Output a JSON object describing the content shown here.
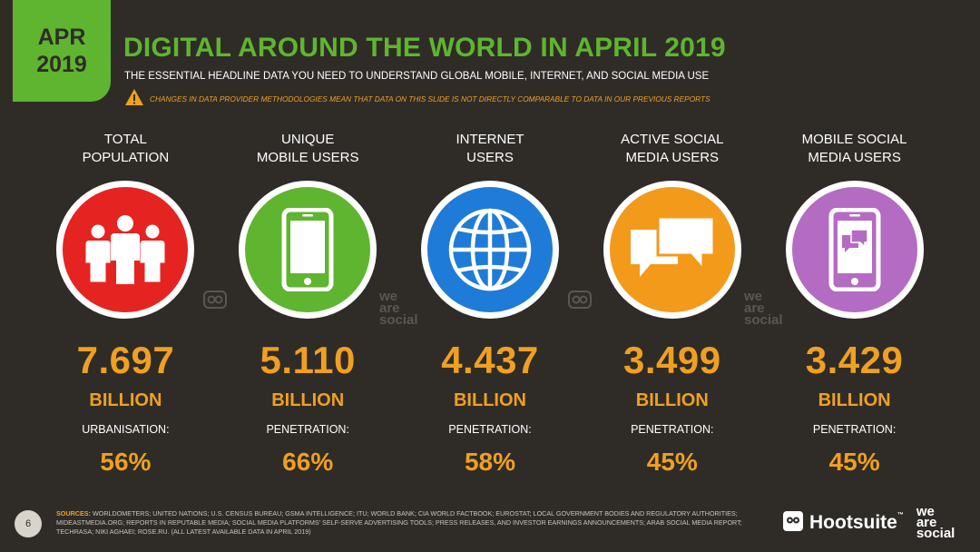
{
  "badge": {
    "month": "APR",
    "year": "2019"
  },
  "header": {
    "title": "DIGITAL AROUND THE WORLD IN APRIL 2019",
    "subtitle": "THE ESSENTIAL HEADLINE DATA YOU NEED TO UNDERSTAND GLOBAL MOBILE, INTERNET, AND SOCIAL MEDIA USE",
    "warning": "CHANGES IN DATA PROVIDER METHODOLOGIES MEAN THAT DATA ON THIS SLIDE IS NOT DIRECTLY COMPARABLE TO DATA IN OUR PREVIOUS REPORTS"
  },
  "colors": {
    "background": "#2f2c28",
    "brand_green": "#5fb52f",
    "accent_orange": "#f0a020",
    "population": "#e52421",
    "mobile": "#5fb52f",
    "internet": "#1f7bd8",
    "social": "#f39a1b",
    "mobile_social": "#b46bc2"
  },
  "stats": [
    {
      "label": "TOTAL\nPOPULATION",
      "icon": "people-icon",
      "value": "7.697",
      "unit": "BILLION",
      "sub_label": "URBANISATION:",
      "sub_value": "56%"
    },
    {
      "label": "UNIQUE\nMOBILE USERS",
      "icon": "mobile-phone-icon",
      "value": "5.110",
      "unit": "BILLION",
      "sub_label": "PENETRATION:",
      "sub_value": "66%"
    },
    {
      "label": "INTERNET\nUSERS",
      "icon": "globe-icon",
      "value": "4.437",
      "unit": "BILLION",
      "sub_label": "PENETRATION:",
      "sub_value": "58%"
    },
    {
      "label": "ACTIVE SOCIAL\nMEDIA USERS",
      "icon": "chat-bubbles-icon",
      "value": "3.499",
      "unit": "BILLION",
      "sub_label": "PENETRATION:",
      "sub_value": "45%"
    },
    {
      "label": "MOBILE SOCIAL\nMEDIA USERS",
      "icon": "phone-chat-icon",
      "value": "3.429",
      "unit": "BILLION",
      "sub_label": "PENETRATION:",
      "sub_value": "45%"
    }
  ],
  "watermark": {
    "line1": "we",
    "line2": "are",
    "line3": "social"
  },
  "footer": {
    "page": "6",
    "sources_label": "SOURCES:",
    "sources": "WORLDOMETERS; UNITED NATIONS; U.S. CENSUS BUREAU; GSMA INTELLIGENCE; ITU; WORLD BANK; CIA WORLD FACTBOOK; EUROSTAT; LOCAL GOVERNMENT BODIES AND REGULATORY AUTHORITIES; MIDEASTMEDIA.ORG; REPORTS IN REPUTABLE MEDIA; SOCIAL MEDIA PLATFORMS' SELF-SERVE ADVERTISING TOOLS; PRESS RELEASES, AND INVESTOR EARNINGS ANNOUNCEMENTS; ARAB SOCIAL MEDIA REPORT; TECHRASA; NIKI AGHAEI; ROSE.RU. (ALL LATEST AVAILABLE DATA IN APRIL 2019)",
    "hootsuite": "Hootsuite",
    "tm": "™",
    "was_line1": "we",
    "was_line2": "are",
    "was_line3": "social"
  }
}
